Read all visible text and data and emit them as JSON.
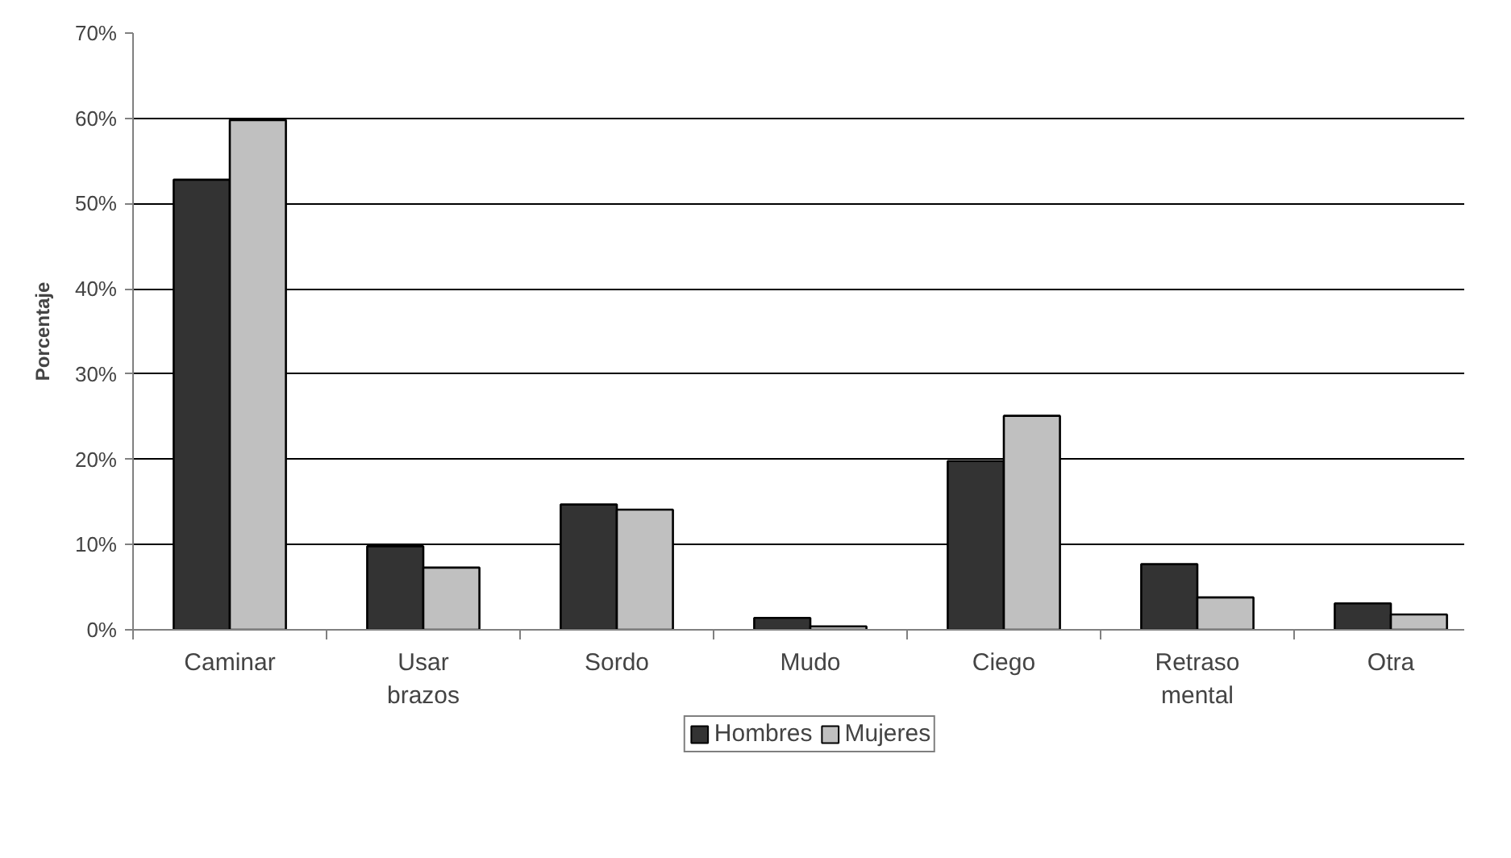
{
  "chart_data": {
    "type": "bar",
    "ylabel": "Porcentaje",
    "categories": [
      "Caminar",
      "Usar brazos",
      "Sordo",
      "Mudo",
      "Ciego",
      "Retraso mental",
      "Otra"
    ],
    "series": [
      {
        "name": "Hombres",
        "color": "#333333",
        "values": [
          52.8,
          9.8,
          14.7,
          1.4,
          19.8,
          7.7,
          3.1
        ]
      },
      {
        "name": "Mujeres",
        "color": "#c0c0c0",
        "values": [
          59.8,
          7.3,
          14.1,
          0.4,
          25.1,
          3.8,
          1.8
        ]
      }
    ],
    "ylim": [
      0,
      70
    ],
    "yticks": [
      {
        "value": 0,
        "label": "0%"
      },
      {
        "value": 10,
        "label": "10%"
      },
      {
        "value": 20,
        "label": "20%"
      },
      {
        "value": 30,
        "label": "30%"
      },
      {
        "value": 40,
        "label": "40%"
      },
      {
        "value": 50,
        "label": "50%"
      },
      {
        "value": 60,
        "label": "60%"
      },
      {
        "value": 70,
        "label": "70%"
      }
    ],
    "grid": "y",
    "legend": "bottom"
  }
}
